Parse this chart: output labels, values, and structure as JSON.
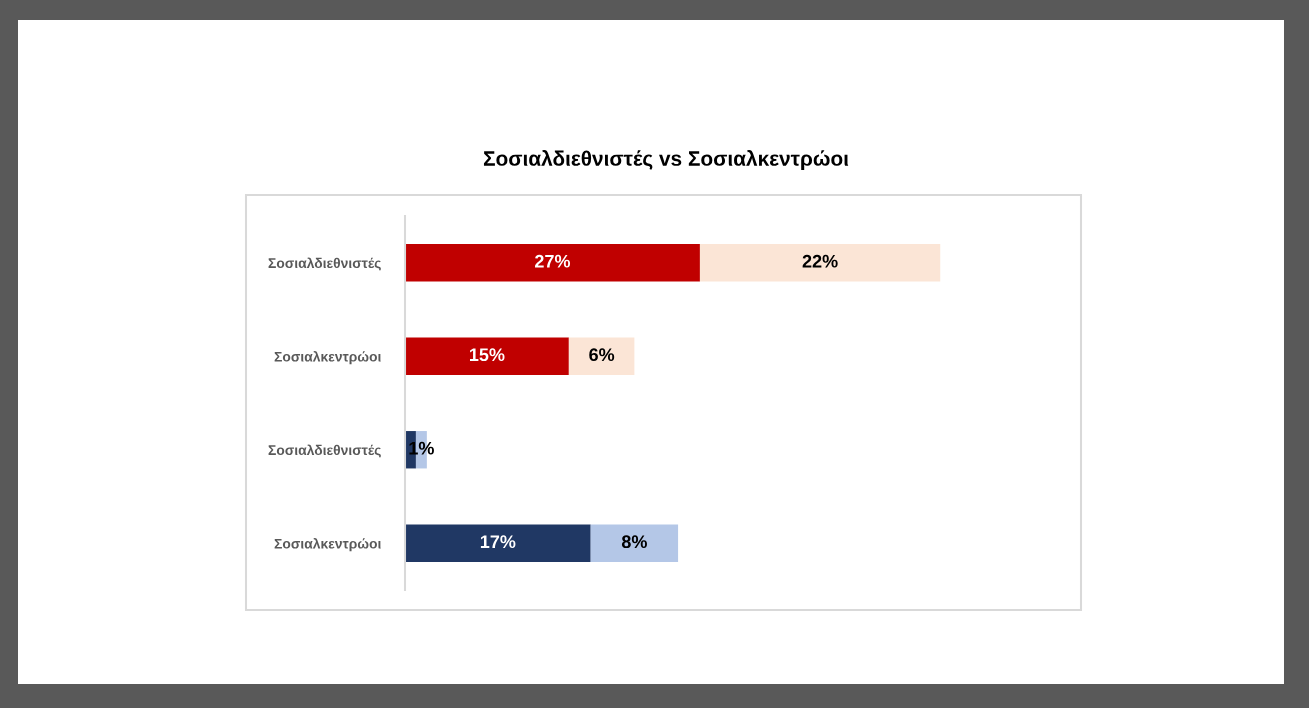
{
  "chart_data": {
    "type": "bar",
    "orientation": "horizontal",
    "stacked": true,
    "title": "Σοσιαλδιεθνιστές vs Σοσιαλκεντρώοι",
    "categories": [
      "Σοσιαλδιεθνιστές",
      "Σοσιαλκεντρώοι",
      "Σοσιαλδιεθνιστές",
      "Σοσιαλκεντρώοι"
    ],
    "series": [
      {
        "colors": [
          "#c00000",
          "#c00000",
          "#203864",
          "#203864"
        ],
        "values": [
          27,
          15,
          1,
          17
        ],
        "value_labels": [
          "27%",
          "15%",
          null,
          "17%"
        ]
      },
      {
        "colors": [
          "#fbe5d6",
          "#fbe5d6",
          "#b4c7e7",
          "#b4c7e7"
        ],
        "values": [
          22,
          6,
          1,
          8
        ],
        "value_labels": [
          "22%",
          "6%",
          "1%",
          "8%"
        ]
      }
    ],
    "tick_labels": "y"
  }
}
